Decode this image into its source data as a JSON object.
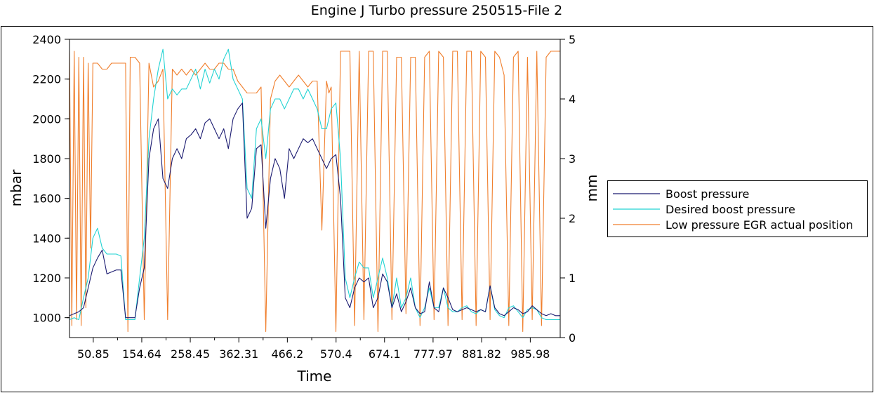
{
  "chart_data": {
    "type": "line",
    "title": "Engine J  Turbo pressure 250515-File 2",
    "xlabel": "Time",
    "ylabel": "mbar",
    "y2label": "mm",
    "xlim": [
      0,
      1050
    ],
    "ylim": [
      900,
      2400
    ],
    "y2lim": [
      0,
      5
    ],
    "xticks": [
      "50.85",
      "154.64",
      "258.45",
      "362.31",
      "466.2",
      "570.4",
      "674.1",
      "777.97",
      "881.82",
      "985.98"
    ],
    "yticks": [
      "1000",
      "1200",
      "1400",
      "1600",
      "1800",
      "2000",
      "2200",
      "2400"
    ],
    "y2ticks": [
      "0",
      "1",
      "2",
      "3",
      "4",
      "5"
    ],
    "legend_position": "right",
    "grid": false,
    "series": [
      {
        "name": "Boost pressure",
        "axis": "left",
        "color": "#1a1a70",
        "x": [
          0,
          10,
          20,
          30,
          40,
          50,
          60,
          70,
          80,
          90,
          100,
          110,
          120,
          130,
          140,
          150,
          160,
          170,
          180,
          190,
          200,
          210,
          220,
          230,
          240,
          250,
          260,
          270,
          280,
          290,
          300,
          310,
          320,
          330,
          340,
          350,
          360,
          370,
          380,
          390,
          400,
          410,
          420,
          430,
          440,
          450,
          460,
          470,
          480,
          490,
          500,
          510,
          520,
          530,
          540,
          550,
          560,
          570,
          580,
          590,
          600,
          610,
          620,
          630,
          640,
          650,
          660,
          670,
          680,
          690,
          700,
          710,
          720,
          730,
          740,
          750,
          760,
          770,
          780,
          790,
          800,
          810,
          820,
          830,
          840,
          850,
          860,
          870,
          880,
          890,
          900,
          910,
          920,
          930,
          940,
          950,
          960,
          970,
          980,
          990,
          1000,
          1010,
          1020,
          1030,
          1040,
          1050
        ],
        "values": [
          1010,
          1020,
          1030,
          1050,
          1150,
          1250,
          1300,
          1340,
          1220,
          1230,
          1240,
          1240,
          1000,
          1000,
          1000,
          1150,
          1250,
          1800,
          1950,
          2000,
          1700,
          1650,
          1800,
          1850,
          1800,
          1900,
          1920,
          1950,
          1900,
          1980,
          2000,
          1950,
          1900,
          1950,
          1850,
          2000,
          2050,
          2080,
          1500,
          1550,
          1850,
          1870,
          1450,
          1700,
          1800,
          1750,
          1600,
          1850,
          1800,
          1850,
          1900,
          1880,
          1900,
          1850,
          1800,
          1750,
          1800,
          1820,
          1600,
          1100,
          1050,
          1150,
          1200,
          1180,
          1200,
          1050,
          1100,
          1220,
          1180,
          1050,
          1120,
          1030,
          1080,
          1150,
          1050,
          1020,
          1030,
          1180,
          1050,
          1030,
          1150,
          1100,
          1040,
          1030,
          1040,
          1050,
          1040,
          1030,
          1040,
          1030,
          1160,
          1050,
          1020,
          1010,
          1030,
          1050,
          1040,
          1020,
          1030,
          1060,
          1040,
          1020,
          1010,
          1020,
          1010,
          1010
        ]
      },
      {
        "name": "Desired boost pressure",
        "axis": "left",
        "color": "#22d3d3",
        "x": [
          0,
          10,
          20,
          30,
          40,
          50,
          60,
          70,
          80,
          90,
          100,
          110,
          120,
          130,
          140,
          150,
          160,
          170,
          180,
          190,
          200,
          210,
          220,
          230,
          240,
          250,
          260,
          270,
          280,
          290,
          300,
          310,
          320,
          330,
          340,
          350,
          360,
          370,
          380,
          390,
          400,
          410,
          420,
          430,
          440,
          450,
          460,
          470,
          480,
          490,
          500,
          510,
          520,
          530,
          540,
          550,
          560,
          570,
          580,
          590,
          600,
          610,
          620,
          630,
          640,
          650,
          660,
          670,
          680,
          690,
          700,
          710,
          720,
          730,
          740,
          750,
          760,
          770,
          780,
          790,
          800,
          810,
          820,
          830,
          840,
          850,
          860,
          870,
          880,
          890,
          900,
          910,
          920,
          930,
          940,
          950,
          960,
          970,
          980,
          990,
          1000,
          1010,
          1020,
          1030,
          1040,
          1050
        ],
        "values": [
          990,
          1000,
          990,
          1100,
          1200,
          1400,
          1450,
          1350,
          1320,
          1320,
          1320,
          1310,
          990,
          990,
          990,
          1200,
          1400,
          1900,
          2100,
          2250,
          2350,
          2100,
          2150,
          2120,
          2150,
          2150,
          2200,
          2250,
          2150,
          2250,
          2180,
          2250,
          2200,
          2300,
          2350,
          2200,
          2150,
          2100,
          1650,
          1600,
          1950,
          2000,
          1800,
          2050,
          2100,
          2100,
          2050,
          2100,
          2150,
          2150,
          2100,
          2150,
          2100,
          2050,
          1950,
          1950,
          2050,
          2080,
          1800,
          1200,
          1100,
          1200,
          1280,
          1250,
          1250,
          1100,
          1200,
          1300,
          1200,
          1050,
          1200,
          1050,
          1100,
          1200,
          1050,
          1000,
          1050,
          1150,
          1050,
          1050,
          1150,
          1050,
          1030,
          1030,
          1050,
          1060,
          1030,
          1020,
          1040,
          1030,
          1160,
          1040,
          1010,
          1000,
          1050,
          1060,
          1030,
          1000,
          1040,
          1050,
          1040,
          1000,
          990,
          990,
          990,
          990
        ]
      },
      {
        "name": "Low pressure EGR actual position",
        "axis": "right",
        "color": "#f07f2d",
        "x": [
          0,
          5,
          10,
          15,
          20,
          25,
          30,
          35,
          40,
          45,
          50,
          60,
          70,
          80,
          90,
          100,
          110,
          120,
          125,
          130,
          140,
          150,
          160,
          170,
          180,
          190,
          200,
          210,
          220,
          230,
          240,
          250,
          260,
          270,
          280,
          290,
          300,
          310,
          320,
          330,
          340,
          350,
          360,
          370,
          380,
          390,
          400,
          410,
          420,
          430,
          440,
          450,
          460,
          470,
          480,
          490,
          500,
          510,
          520,
          530,
          540,
          550,
          555,
          560,
          570,
          580,
          590,
          600,
          610,
          620,
          630,
          640,
          650,
          660,
          670,
          680,
          690,
          700,
          710,
          720,
          730,
          740,
          750,
          760,
          770,
          780,
          790,
          800,
          810,
          820,
          830,
          840,
          850,
          860,
          870,
          880,
          890,
          900,
          910,
          920,
          930,
          940,
          950,
          960,
          970,
          980,
          990,
          1000,
          1010,
          1020,
          1030,
          1040,
          1050
        ],
        "values": [
          4.8,
          0.2,
          4.8,
          0.3,
          4.7,
          0.2,
          4.7,
          0.5,
          4.6,
          1.5,
          4.6,
          4.6,
          4.5,
          4.5,
          4.6,
          4.6,
          4.6,
          4.6,
          0.1,
          4.7,
          4.7,
          4.6,
          0.3,
          4.6,
          4.2,
          4.3,
          4.5,
          0.3,
          4.5,
          4.4,
          4.5,
          4.4,
          4.5,
          4.4,
          4.5,
          4.6,
          4.5,
          4.5,
          4.6,
          4.6,
          4.5,
          4.5,
          4.3,
          4.2,
          4.1,
          4.1,
          4.1,
          4.2,
          0.1,
          4.0,
          4.3,
          4.4,
          4.3,
          4.2,
          4.3,
          4.4,
          4.3,
          4.2,
          4.3,
          4.3,
          1.8,
          4.3,
          4.1,
          4.2,
          0.1,
          4.8,
          4.8,
          4.8,
          0.2,
          4.8,
          0.3,
          4.8,
          4.8,
          0.1,
          4.8,
          4.8,
          0.3,
          4.7,
          4.7,
          0.4,
          4.7,
          4.7,
          0.2,
          4.7,
          4.8,
          0.3,
          4.8,
          4.7,
          0.2,
          4.8,
          4.8,
          0.3,
          4.8,
          4.8,
          0.2,
          4.8,
          4.7,
          0.3,
          4.8,
          4.7,
          4.4,
          0.2,
          4.7,
          4.8,
          0.1,
          4.7,
          0.3,
          4.8,
          0.2,
          4.7,
          4.8,
          4.8,
          4.8
        ]
      }
    ]
  }
}
